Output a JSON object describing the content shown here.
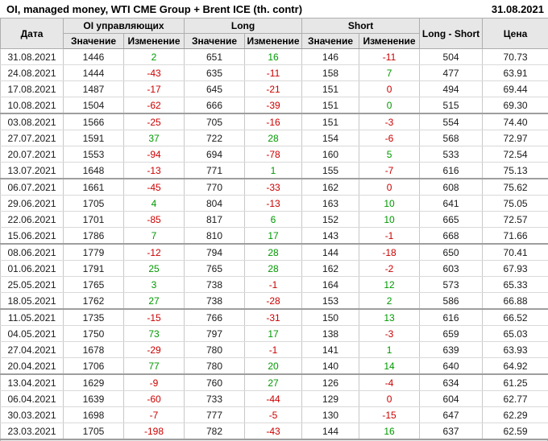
{
  "header": {
    "title": "OI, managed money, WTI CME Group + Brent ICE (th. contr)",
    "date": "31.08.2021"
  },
  "colors": {
    "positive": "#009900",
    "negative": "#cc0000"
  },
  "chart_data": {
    "type": "table",
    "title": "OI, managed money, WTI CME Group + Brent ICE (th. contr)",
    "as_of_date": "31.08.2021",
    "columns": {
      "date": "Дата",
      "oi_group": "OI управляющих",
      "long_group": "Long",
      "short_group": "Short",
      "net": "Long - Short",
      "price": "Цена",
      "value": "Значение",
      "change": "Изменение"
    },
    "group_size": 4,
    "rows": [
      {
        "date": "31.08.2021",
        "oi": "1446",
        "oi_chg": "2",
        "long": "651",
        "long_chg": "16",
        "short": "146",
        "short_chg": "-11",
        "net": "504",
        "price": "70.73",
        "dirs": [
          "g",
          "g",
          "r"
        ]
      },
      {
        "date": "24.08.2021",
        "oi": "1444",
        "oi_chg": "-43",
        "long": "635",
        "long_chg": "-11",
        "short": "158",
        "short_chg": "7",
        "net": "477",
        "price": "63.91",
        "dirs": [
          "r",
          "r",
          "g"
        ]
      },
      {
        "date": "17.08.2021",
        "oi": "1487",
        "oi_chg": "-17",
        "long": "645",
        "long_chg": "-21",
        "short": "151",
        "short_chg": "0",
        "net": "494",
        "price": "69.44",
        "dirs": [
          "r",
          "r",
          "r"
        ]
      },
      {
        "date": "10.08.2021",
        "oi": "1504",
        "oi_chg": "-62",
        "long": "666",
        "long_chg": "-39",
        "short": "151",
        "short_chg": "0",
        "net": "515",
        "price": "69.30",
        "dirs": [
          "r",
          "r",
          "g"
        ]
      },
      {
        "date": "03.08.2021",
        "oi": "1566",
        "oi_chg": "-25",
        "long": "705",
        "long_chg": "-16",
        "short": "151",
        "short_chg": "-3",
        "net": "554",
        "price": "74.40",
        "dirs": [
          "r",
          "r",
          "r"
        ]
      },
      {
        "date": "27.07.2021",
        "oi": "1591",
        "oi_chg": "37",
        "long": "722",
        "long_chg": "28",
        "short": "154",
        "short_chg": "-6",
        "net": "568",
        "price": "72.97",
        "dirs": [
          "g",
          "g",
          "r"
        ]
      },
      {
        "date": "20.07.2021",
        "oi": "1553",
        "oi_chg": "-94",
        "long": "694",
        "long_chg": "-78",
        "short": "160",
        "short_chg": "5",
        "net": "533",
        "price": "72.54",
        "dirs": [
          "r",
          "r",
          "g"
        ]
      },
      {
        "date": "13.07.2021",
        "oi": "1648",
        "oi_chg": "-13",
        "long": "771",
        "long_chg": "1",
        "short": "155",
        "short_chg": "-7",
        "net": "616",
        "price": "75.13",
        "dirs": [
          "r",
          "g",
          "r"
        ]
      },
      {
        "date": "06.07.2021",
        "oi": "1661",
        "oi_chg": "-45",
        "long": "770",
        "long_chg": "-33",
        "short": "162",
        "short_chg": "0",
        "net": "608",
        "price": "75.62",
        "dirs": [
          "r",
          "r",
          "r"
        ]
      },
      {
        "date": "29.06.2021",
        "oi": "1705",
        "oi_chg": "4",
        "long": "804",
        "long_chg": "-13",
        "short": "163",
        "short_chg": "10",
        "net": "641",
        "price": "75.05",
        "dirs": [
          "g",
          "r",
          "g"
        ]
      },
      {
        "date": "22.06.2021",
        "oi": "1701",
        "oi_chg": "-85",
        "long": "817",
        "long_chg": "6",
        "short": "152",
        "short_chg": "10",
        "net": "665",
        "price": "72.57",
        "dirs": [
          "r",
          "g",
          "g"
        ]
      },
      {
        "date": "15.06.2021",
        "oi": "1786",
        "oi_chg": "7",
        "long": "810",
        "long_chg": "17",
        "short": "143",
        "short_chg": "-1",
        "net": "668",
        "price": "71.66",
        "dirs": [
          "g",
          "g",
          "r"
        ]
      },
      {
        "date": "08.06.2021",
        "oi": "1779",
        "oi_chg": "-12",
        "long": "794",
        "long_chg": "28",
        "short": "144",
        "short_chg": "-18",
        "net": "650",
        "price": "70.41",
        "dirs": [
          "r",
          "g",
          "r"
        ]
      },
      {
        "date": "01.06.2021",
        "oi": "1791",
        "oi_chg": "25",
        "long": "765",
        "long_chg": "28",
        "short": "162",
        "short_chg": "-2",
        "net": "603",
        "price": "67.93",
        "dirs": [
          "g",
          "g",
          "r"
        ]
      },
      {
        "date": "25.05.2021",
        "oi": "1765",
        "oi_chg": "3",
        "long": "738",
        "long_chg": "-1",
        "short": "164",
        "short_chg": "12",
        "net": "573",
        "price": "65.33",
        "dirs": [
          "g",
          "r",
          "g"
        ]
      },
      {
        "date": "18.05.2021",
        "oi": "1762",
        "oi_chg": "27",
        "long": "738",
        "long_chg": "-28",
        "short": "153",
        "short_chg": "2",
        "net": "586",
        "price": "66.88",
        "dirs": [
          "g",
          "r",
          "g"
        ]
      },
      {
        "date": "11.05.2021",
        "oi": "1735",
        "oi_chg": "-15",
        "long": "766",
        "long_chg": "-31",
        "short": "150",
        "short_chg": "13",
        "net": "616",
        "price": "66.52",
        "dirs": [
          "r",
          "r",
          "g"
        ]
      },
      {
        "date": "04.05.2021",
        "oi": "1750",
        "oi_chg": "73",
        "long": "797",
        "long_chg": "17",
        "short": "138",
        "short_chg": "-3",
        "net": "659",
        "price": "65.03",
        "dirs": [
          "g",
          "g",
          "r"
        ]
      },
      {
        "date": "27.04.2021",
        "oi": "1678",
        "oi_chg": "-29",
        "long": "780",
        "long_chg": "-1",
        "short": "141",
        "short_chg": "1",
        "net": "639",
        "price": "63.93",
        "dirs": [
          "r",
          "r",
          "g"
        ]
      },
      {
        "date": "20.04.2021",
        "oi": "1706",
        "oi_chg": "77",
        "long": "780",
        "long_chg": "20",
        "short": "140",
        "short_chg": "14",
        "net": "640",
        "price": "64.92",
        "dirs": [
          "g",
          "g",
          "g"
        ]
      },
      {
        "date": "13.04.2021",
        "oi": "1629",
        "oi_chg": "-9",
        "long": "760",
        "long_chg": "27",
        "short": "126",
        "short_chg": "-4",
        "net": "634",
        "price": "61.25",
        "dirs": [
          "r",
          "g",
          "r"
        ]
      },
      {
        "date": "06.04.2021",
        "oi": "1639",
        "oi_chg": "-60",
        "long": "733",
        "long_chg": "-44",
        "short": "129",
        "short_chg": "0",
        "net": "604",
        "price": "62.77",
        "dirs": [
          "r",
          "r",
          "r"
        ]
      },
      {
        "date": "30.03.2021",
        "oi": "1698",
        "oi_chg": "-7",
        "long": "777",
        "long_chg": "-5",
        "short": "130",
        "short_chg": "-15",
        "net": "647",
        "price": "62.29",
        "dirs": [
          "r",
          "r",
          "r"
        ]
      },
      {
        "date": "23.03.2021",
        "oi": "1705",
        "oi_chg": "-198",
        "long": "782",
        "long_chg": "-43",
        "short": "144",
        "short_chg": "16",
        "net": "637",
        "price": "62.59",
        "dirs": [
          "r",
          "r",
          "g"
        ]
      }
    ]
  }
}
